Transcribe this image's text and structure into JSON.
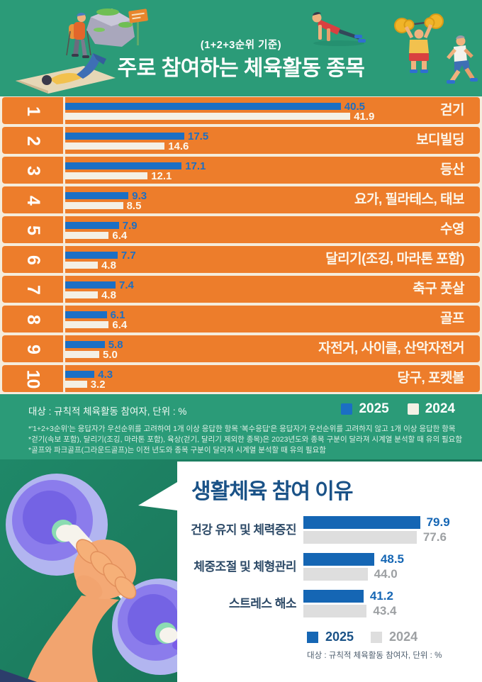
{
  "header": {
    "subtitle": "(1+2+3순위 기준)",
    "title": "주로 참여하는 체육활동 종목"
  },
  "band": {
    "caption": "대상 : 규칙적 체육활동 참여자, 단위 : %",
    "legend_2025": "2025",
    "legend_2024": "2024"
  },
  "footnotes": [
    "*'1+2+3순위'는 응답자가 우선순위를 고려하여 1개 이상 응답한 항목 '복수응답'은 응답자가 우선순위를 고려하지 않고 1개 이상 응답한 항목",
    "*걷기(속보 포함), 달리기(조깅, 마라톤 포함), 육상(걷기, 달리기 제외한 종목)은 2023년도와 종목 구분이 달라져 시계열 분석할 때 유의 필요함",
    "*골프와 파크골프(그라운드골프)는 이전 년도와 종목 구분이 달라져 시계열 분석할 때 유의 필요함"
  ],
  "section2": {
    "title": "생활체육 참여 이유",
    "caption": "대상 : 규칙적 체육활동 참여자, 단위 : %",
    "legend_2025": "2025",
    "legend_2024": "2024"
  },
  "colors": {
    "header_green": "#2B9B78",
    "bottom_green": "#1B7A5D",
    "row_orange": "#ED7D2B",
    "gap_cream": "#F5ECDC",
    "bar_blue_2025": "#1B6FC4",
    "bar_cream_2024": "#F4F0E5",
    "panel_title_navy": "#1A5287",
    "bar2_blue_2025": "#1566B4",
    "bar2_gray_2024": "#DEDEDE",
    "gray_value_text": "#9DA0A3"
  },
  "chart_data": [
    {
      "type": "bar",
      "orientation": "horizontal",
      "title": "주로 참여하는 체육활동 종목 (1+2+3순위 기준)",
      "unit": "%",
      "target": "규칙적 체육활동 참여자",
      "ranks": [
        1,
        2,
        3,
        4,
        5,
        6,
        7,
        8,
        9,
        10
      ],
      "categories": [
        "걷기",
        "보디빌딩",
        "등산",
        "요가, 필라테스, 태보",
        "수영",
        "달리기(조깅, 마라톤 포함)",
        "축구 풋살",
        "골프",
        "자전거, 사이클, 산악자전거",
        "당구, 포켓볼"
      ],
      "series": [
        {
          "name": "2025",
          "color": "#1B6FC4",
          "value_color": "#1B6FC4",
          "values": [
            40.5,
            17.5,
            17.1,
            9.3,
            7.9,
            7.7,
            7.4,
            6.1,
            5.8,
            4.3
          ]
        },
        {
          "name": "2024",
          "color": "#F4F0E5",
          "value_color": "#FCF8EE",
          "values": [
            41.9,
            14.6,
            12.1,
            8.5,
            6.4,
            4.8,
            4.8,
            6.4,
            5.0,
            3.2
          ]
        }
      ],
      "xlim": [
        0,
        42
      ],
      "legend_position": "bottom-right",
      "grid": false
    },
    {
      "type": "bar",
      "orientation": "horizontal",
      "title": "생활체육 참여 이유",
      "unit": "%",
      "target": "규칙적 체육활동 참여자",
      "categories": [
        "건강 유지 및 체력증진",
        "체중조절 및 체형관리",
        "스트레스 해소"
      ],
      "series": [
        {
          "name": "2025",
          "color": "#1566B4",
          "value_color": "#1566B4",
          "values": [
            79.9,
            48.5,
            41.2
          ]
        },
        {
          "name": "2024",
          "color": "#DEDEDE",
          "value_color": "#9DA0A3",
          "values": [
            77.6,
            44.0,
            43.4
          ]
        }
      ],
      "xlim": [
        0,
        85
      ],
      "legend_position": "bottom",
      "grid": false
    }
  ]
}
